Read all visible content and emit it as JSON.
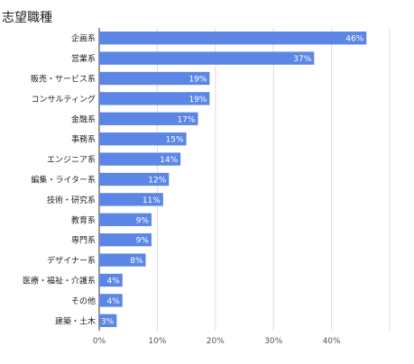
{
  "chart_data": {
    "type": "bar",
    "orientation": "horizontal",
    "title": "志望職種",
    "xlabel": "",
    "ylabel": "",
    "xlim": [
      0,
      50
    ],
    "x_ticks": [
      "0%",
      "10%",
      "20%",
      "30%",
      "40%"
    ],
    "x_tick_values": [
      0,
      10,
      20,
      30,
      40
    ],
    "grid": "vertical",
    "bar_color": "#5b86e5",
    "categories": [
      "企画系",
      "営業系",
      "販売・サービス系",
      "コンサルティング",
      "金融系",
      "事務系",
      "エンジニア系",
      "編集・ライター系",
      "技術・研究系",
      "教育系",
      "専門系",
      "デザイナー系",
      "医療・福祉・介護系",
      "その他",
      "建築・土木"
    ],
    "values": [
      46,
      37,
      19,
      19,
      17,
      15,
      14,
      12,
      11,
      9,
      9,
      8,
      4,
      4,
      3
    ],
    "value_labels": [
      "46%",
      "37%",
      "19%",
      "19%",
      "17%",
      "15%",
      "14%",
      "12%",
      "11%",
      "9%",
      "9%",
      "8%",
      "4%",
      "4%",
      "3%"
    ]
  }
}
